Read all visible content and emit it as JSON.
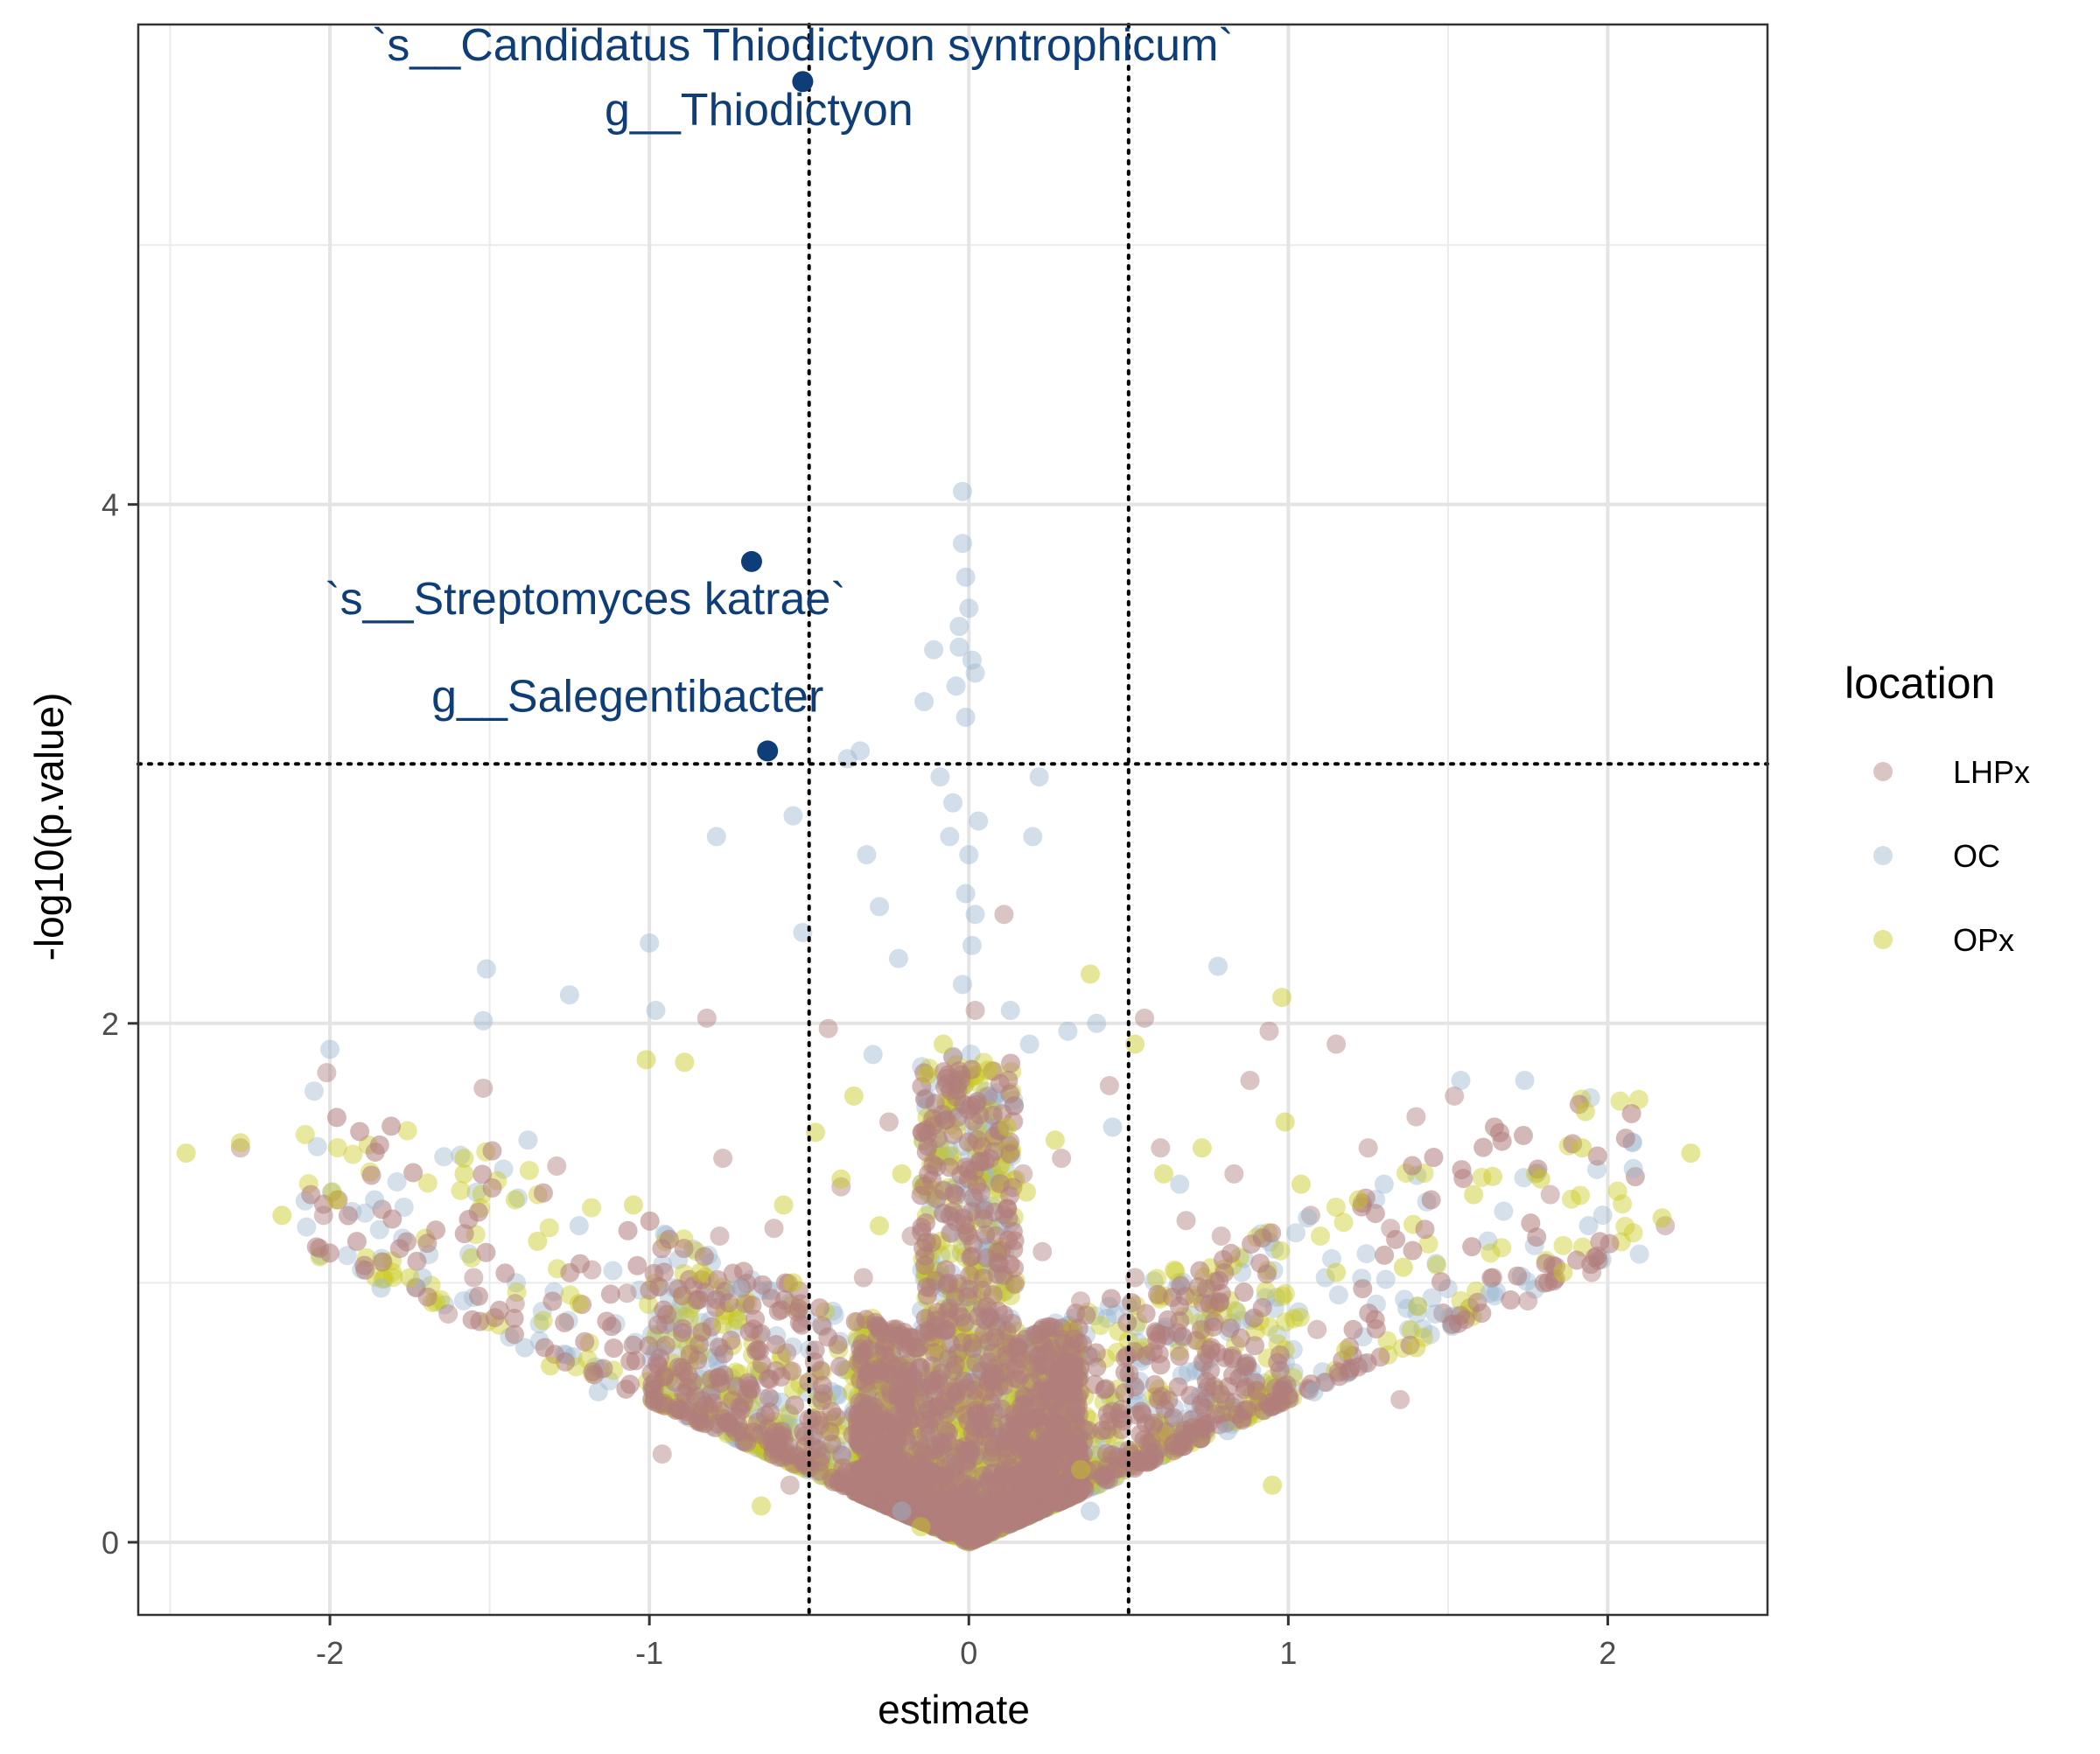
{
  "chart_data": {
    "type": "scatter",
    "title": "",
    "xlabel": "estimate",
    "ylabel": "-log10(p.value)",
    "xlim": [
      -2.6,
      2.5
    ],
    "ylim": [
      -0.28,
      5.85
    ],
    "x_ticks": [
      -2,
      -1,
      0,
      1,
      2
    ],
    "x_tick_labels": [
      "-2",
      "-1",
      "0",
      "1",
      "2"
    ],
    "y_ticks": [
      0,
      2,
      4
    ],
    "y_tick_labels": [
      "0",
      "2",
      "4"
    ],
    "minor_x": [
      -2.5,
      -1.5,
      -0.5,
      0.5,
      1.5
    ],
    "minor_y": [
      1,
      3,
      5
    ],
    "grid": true,
    "thresholds": {
      "x": [
        -0.5,
        0.5
      ],
      "y": 3
    },
    "legend": {
      "title": "location",
      "position": "right",
      "entries": [
        {
          "name": "LHPx",
          "color": "#b07e7c"
        },
        {
          "name": "OC",
          "color": "#9cb5d0"
        },
        {
          "name": "OPx",
          "color": "#c8c81a"
        }
      ]
    },
    "highlight_color": "#0e3d78",
    "highlighted_points": [
      {
        "x": -0.52,
        "y": 5.63,
        "label": "`s__Candidatus Thiodictyon syntrophicum`"
      },
      {
        "x": -0.52,
        "y": 5.63,
        "label": "g__Thiodictyon"
      },
      {
        "x": -0.68,
        "y": 3.78,
        "label": "`s__Streptomyces katrae`"
      },
      {
        "x": -0.63,
        "y": 3.05,
        "label": "g__Salegentibacter"
      }
    ],
    "series": [
      {
        "name": "LHPx",
        "color": "#b07e7c",
        "points": [
          [
            -2.28,
            1.52
          ],
          [
            -2.01,
            1.81
          ],
          [
            -2.02,
            1.26
          ],
          [
            -1.52,
            1.75
          ],
          [
            -1.63,
            0.88
          ],
          [
            -1.55,
            1.02
          ],
          [
            -1.42,
            0.92
          ],
          [
            -1.29,
            1.45
          ],
          [
            -1.18,
            1.05
          ],
          [
            -1.07,
            0.96
          ],
          [
            -0.95,
            0.84
          ],
          [
            -0.82,
            2.02
          ],
          [
            -0.77,
            1.48
          ],
          [
            -0.7,
            0.92
          ],
          [
            -0.61,
            1.21
          ],
          [
            -0.57,
            0.73
          ],
          [
            -0.44,
            1.98
          ],
          [
            -0.4,
            1.37
          ],
          [
            -0.33,
            1.02
          ],
          [
            -0.25,
            1.62
          ],
          [
            -0.18,
            1.18
          ],
          [
            -0.12,
            0.98
          ],
          [
            -0.05,
            1.87
          ],
          [
            0.02,
            2.05
          ],
          [
            0.06,
            1.72
          ],
          [
            0.11,
            2.42
          ],
          [
            0.17,
            1.42
          ],
          [
            0.23,
            1.12
          ],
          [
            0.29,
            1.48
          ],
          [
            0.35,
            0.93
          ],
          [
            0.44,
            1.76
          ],
          [
            0.55,
            2.02
          ],
          [
            0.6,
            1.52
          ],
          [
            0.68,
            1.24
          ],
          [
            0.79,
            1.18
          ],
          [
            0.88,
            1.78
          ],
          [
            0.94,
            1.97
          ],
          [
            1.07,
            1.26
          ],
          [
            1.15,
            1.92
          ],
          [
            1.25,
            1.52
          ],
          [
            1.32,
            1.21
          ],
          [
            1.4,
            1.64
          ],
          [
            1.52,
            1.72
          ],
          [
            1.64,
            1.02
          ],
          [
            1.75,
            0.93
          ],
          [
            1.82,
            1.34
          ],
          [
            1.95,
            1.04
          ],
          [
            2.18,
            1.22
          ],
          [
            1.35,
            0.55
          ],
          [
            1.09,
            0.82
          ],
          [
            -0.96,
            0.34
          ],
          [
            -0.56,
            0.22
          ],
          [
            -0.78,
            1.18
          ],
          [
            0.83,
            1.42
          ],
          [
            0.52,
            1.02
          ]
        ]
      },
      {
        "name": "OC",
        "color": "#9cb5d0",
        "points": [
          [
            -2.0,
            1.9
          ],
          [
            -1.51,
            2.21
          ],
          [
            -1.52,
            2.01
          ],
          [
            -1.25,
            2.11
          ],
          [
            -1.0,
            2.31
          ],
          [
            -0.98,
            2.05
          ],
          [
            -0.79,
            2.72
          ],
          [
            -0.55,
            2.8
          ],
          [
            -0.52,
            2.35
          ],
          [
            -0.38,
            3.02
          ],
          [
            -0.34,
            3.05
          ],
          [
            -0.32,
            2.65
          ],
          [
            -0.28,
            2.45
          ],
          [
            -0.22,
            2.25
          ],
          [
            -0.14,
            3.24
          ],
          [
            -0.11,
            3.44
          ],
          [
            -0.09,
            2.95
          ],
          [
            -0.06,
            2.72
          ],
          [
            -0.05,
            2.85
          ],
          [
            -0.02,
            4.05
          ],
          [
            -0.02,
            3.85
          ],
          [
            -0.01,
            3.72
          ],
          [
            0.0,
            3.6
          ],
          [
            -0.03,
            3.53
          ],
          [
            -0.03,
            3.45
          ],
          [
            0.01,
            3.4
          ],
          [
            0.02,
            3.35
          ],
          [
            -0.04,
            3.3
          ],
          [
            -0.01,
            3.18
          ],
          [
            0.03,
            2.78
          ],
          [
            0.0,
            2.65
          ],
          [
            -0.01,
            2.5
          ],
          [
            0.02,
            2.42
          ],
          [
            0.01,
            2.3
          ],
          [
            -0.02,
            2.15
          ],
          [
            0.13,
            2.05
          ],
          [
            0.19,
            1.92
          ],
          [
            0.31,
            1.97
          ],
          [
            0.4,
            2.0
          ],
          [
            0.45,
            1.6
          ],
          [
            0.78,
            2.22
          ],
          [
            0.22,
            2.95
          ],
          [
            0.2,
            2.72
          ],
          [
            1.06,
            1.25
          ],
          [
            1.3,
            1.38
          ],
          [
            1.54,
            1.78
          ],
          [
            1.74,
            1.78
          ],
          [
            2.08,
            1.44
          ],
          [
            1.94,
            1.22
          ],
          [
            -1.86,
            1.32
          ],
          [
            -1.71,
            1.02
          ],
          [
            -1.38,
            1.55
          ],
          [
            -1.22,
            1.22
          ],
          [
            -1.39,
            0.75
          ],
          [
            -1.16,
            0.58
          ],
          [
            -0.72,
            0.98
          ],
          [
            -0.21,
            0.12
          ],
          [
            0.38,
            0.12
          ],
          [
            0.81,
            0.43
          ],
          [
            1.08,
            0.58
          ],
          [
            1.46,
            0.88
          ],
          [
            1.63,
            0.96
          ],
          [
            -1.84,
            0.98
          ],
          [
            0.66,
            1.38
          ],
          [
            -0.3,
            1.88
          ]
        ]
      },
      {
        "name": "OPx",
        "color": "#c8c81a",
        "points": [
          [
            -2.45,
            1.5
          ],
          [
            -2.28,
            1.54
          ],
          [
            -2.15,
            1.26
          ],
          [
            -1.98,
            1.32
          ],
          [
            -1.75,
            1.02
          ],
          [
            -1.58,
            1.48
          ],
          [
            -1.58,
            1.42
          ],
          [
            -1.42,
            1.32
          ],
          [
            -1.35,
            1.16
          ],
          [
            -1.31,
            0.68
          ],
          [
            -1.05,
            1.3
          ],
          [
            -1.01,
            1.86
          ],
          [
            -0.89,
            1.85
          ],
          [
            -0.84,
            1.04
          ],
          [
            -0.77,
            0.84
          ],
          [
            -0.58,
            1.3
          ],
          [
            -0.48,
            1.58
          ],
          [
            -0.4,
            1.4
          ],
          [
            -0.36,
            1.72
          ],
          [
            -0.28,
            1.22
          ],
          [
            -0.21,
            1.42
          ],
          [
            -0.13,
            1.8
          ],
          [
            -0.08,
            1.92
          ],
          [
            0.06,
            1.82
          ],
          [
            0.12,
            1.6
          ],
          [
            0.18,
            1.35
          ],
          [
            0.27,
            1.55
          ],
          [
            0.38,
            2.19
          ],
          [
            0.52,
            1.92
          ],
          [
            0.61,
            1.42
          ],
          [
            0.73,
            1.52
          ],
          [
            0.98,
            2.1
          ],
          [
            0.99,
            1.62
          ],
          [
            1.04,
            1.38
          ],
          [
            1.15,
            1.04
          ],
          [
            1.22,
            1.32
          ],
          [
            1.36,
            1.06
          ],
          [
            1.4,
            0.75
          ],
          [
            1.64,
            1.41
          ],
          [
            1.79,
            1.4
          ],
          [
            1.86,
            1.04
          ],
          [
            1.92,
            1.52
          ],
          [
            1.93,
            1.66
          ],
          [
            2.17,
            1.25
          ],
          [
            2.26,
            1.5
          ],
          [
            -0.55,
            1.0
          ],
          [
            -0.15,
            0.06
          ],
          [
            0.35,
            0.28
          ],
          [
            1.18,
            0.74
          ],
          [
            -1.22,
            0.92
          ],
          [
            1.58,
            1.34
          ],
          [
            -0.65,
            0.14
          ],
          [
            0.95,
            0.22
          ]
        ]
      }
    ]
  }
}
